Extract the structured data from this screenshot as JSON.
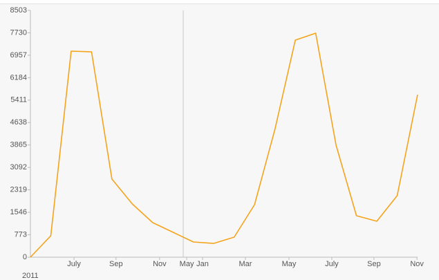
{
  "chart_data": {
    "type": "line",
    "x": [
      0,
      1,
      2,
      3,
      4,
      5,
      6,
      7,
      8,
      9,
      10,
      11,
      12,
      13,
      14,
      15,
      16,
      17,
      18,
      19
    ],
    "xlim": [
      0,
      19
    ],
    "xticks": [
      {
        "value": 2.14,
        "label": "July"
      },
      {
        "value": 4.2,
        "label": "Sep"
      },
      {
        "value": 6.34,
        "label": "Nov"
      },
      {
        "value": 7.67,
        "label": "May"
      },
      {
        "value": 8.45,
        "label": "Jan"
      },
      {
        "value": 10.55,
        "label": "Mar"
      },
      {
        "value": 12.69,
        "label": "May"
      },
      {
        "value": 14.79,
        "label": "July"
      },
      {
        "value": 16.86,
        "label": "Sep"
      },
      {
        "value": 18.97,
        "label": "Nov"
      }
    ],
    "year_label": "2011",
    "vline_x": 7.5,
    "series": [
      {
        "color": "#f5a31a",
        "values": [
          0,
          738,
          7098,
          7074,
          2692,
          1834,
          1191,
          857,
          524,
          476,
          691,
          1810,
          4406,
          7479,
          7717,
          3859,
          1429,
          1239,
          2120,
          5597
        ]
      }
    ],
    "ylim": [
      0,
      8503
    ],
    "yticks": [
      0,
      773,
      1546,
      2319,
      3092,
      3865,
      4638,
      5411,
      6184,
      6957,
      7730,
      8503
    ]
  }
}
